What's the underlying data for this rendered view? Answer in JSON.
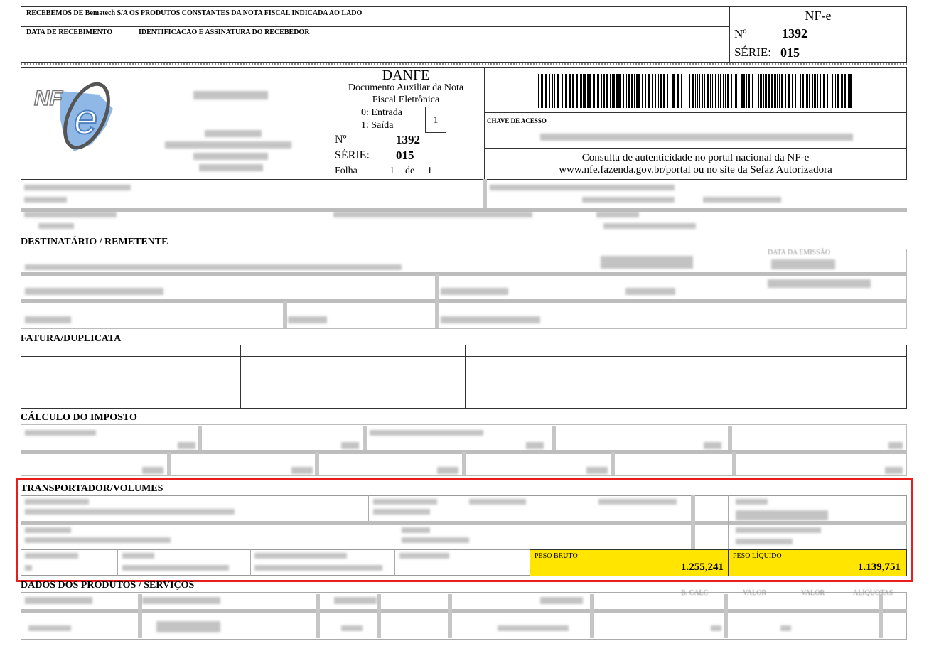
{
  "receipt": {
    "header": "RECEBEMOS DE Bematech S/A OS PRODUTOS CONSTANTES DA NOTA FISCAL INDICADA AO LADO",
    "date_label": "DATA DE RECEBIMENTO",
    "signature_label": "IDENTIFICACAO E ASSINATURA DO RECEBEDOR",
    "nfe_label": "NF-e",
    "number_label": "Nº",
    "number": "1392",
    "series_label": "SÉRIE:",
    "series": "015"
  },
  "danfe": {
    "title": "DANFE",
    "subtitle1": "Documento Auxiliar da Nota",
    "subtitle2": "Fiscal Eletrônica",
    "entry": "0: Entrada",
    "exit": "1: Saída",
    "type_value": "1",
    "number_label": "Nº",
    "number": "1392",
    "series_label": "SÉRIE:",
    "series": "015",
    "page_label": "Folha",
    "page": "1",
    "page_of": "de",
    "page_total": "1",
    "logo_text": "NF-e"
  },
  "access": {
    "key_label": "CHAVE DE ACESSO",
    "consult1": "Consulta de autenticidade no portal nacional da NF-e",
    "consult2": "www.nfe.fazenda.gov.br/portal ou no site da Sefaz Autorizadora"
  },
  "sections": {
    "recipient": "DESTINATÁRIO / REMETENTE",
    "invoice": "FATURA/DUPLICATA",
    "tax": "CÁLCULO DO IMPOSTO",
    "transport": "TRANSPORTADOR/VOLUMES",
    "products": "DADOS DOS PRODUTOS / SERVIÇOS"
  },
  "recipient_extra": {
    "issue_date_label": "DATA DA EMISSÃO"
  },
  "transport": {
    "gross_weight_label": "PESO BRUTO",
    "gross_weight": "1.255,241",
    "net_weight_label": "PESO LÍQUIDO",
    "net_weight": "1.139,751"
  },
  "products": {
    "columns": [
      "B. CALC",
      "VALOR",
      "VALOR",
      "ALÍQUOTAS"
    ]
  },
  "colors": {
    "highlight": "#FFE500",
    "frame": "#E81E1E"
  }
}
